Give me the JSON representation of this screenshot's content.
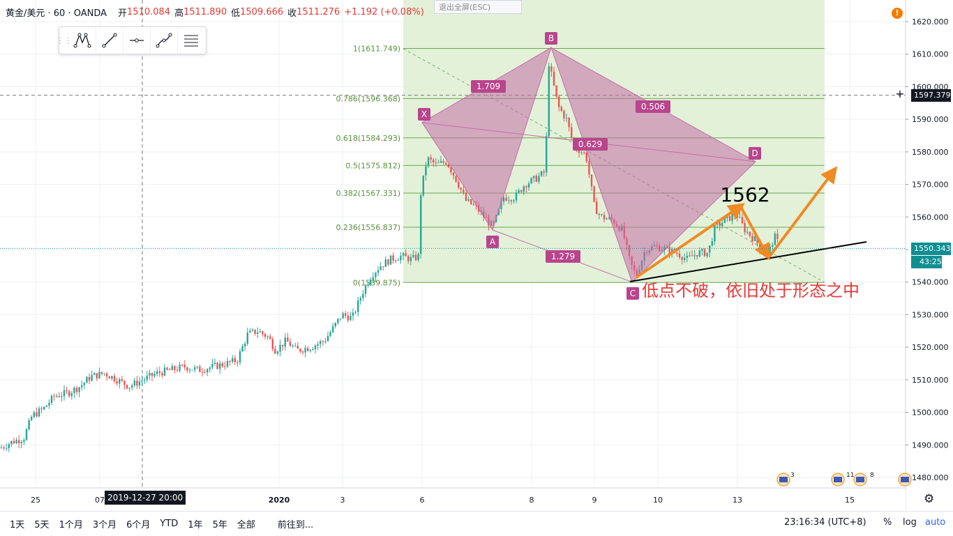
{
  "header": {
    "symbol": "黄金/美元 · 60 · OANDA",
    "open_label": "开",
    "open": "1510.084",
    "high_label": "高",
    "high": "1511.890",
    "low_label": "低",
    "low": "1509.666",
    "close_label": "收",
    "close": "1511.276",
    "change": "+1.192 (+0.08%)"
  },
  "exit_fullscreen": "退出全屏(ESC)",
  "toolbar": {
    "icons": [
      "pattern-icon",
      "trendline-icon",
      "horizontal-ray-icon",
      "curve-icon",
      "fib-icon"
    ]
  },
  "bottom": {
    "ranges": [
      "1天",
      "5天",
      "1个月",
      "3个月",
      "6个月",
      "YTD",
      "1年",
      "5年",
      "全部"
    ],
    "goto": "前往到...",
    "clock": "23:16:34 (UTC+8)",
    "percent": "%",
    "log": "log",
    "auto": "auto"
  },
  "price_axis": {
    "crosshair_price": "1597.379",
    "last_price": "1550.343",
    "countdown": "43:25"
  },
  "crosshair_time": "2019-12-27   20:00",
  "colors": {
    "up": "#26a69a",
    "down": "#ef5350",
    "fib_fill": "#e3f1d9",
    "fib_line": "#6aa84f",
    "pattern": "#c46ca6",
    "annotation": "#f08a24",
    "note_text": "#e53935",
    "last_price": "#0f8f93"
  },
  "chart_data": {
    "type": "candlestick",
    "ylim": [
      1475,
      1628
    ],
    "y_ticks": [
      1480,
      1490,
      1500,
      1510,
      1520,
      1530,
      1540,
      1550,
      1560,
      1570,
      1580,
      1590,
      1600,
      1610,
      1620
    ],
    "x_ticks": [
      "25",
      "07",
      "2020",
      "3",
      "6",
      "8",
      "9",
      "10",
      "13",
      "15"
    ],
    "close_path": [
      [
        0,
        1489
      ],
      [
        18,
        1491
      ],
      [
        34,
        1492
      ],
      [
        46,
        1499
      ],
      [
        62,
        1501
      ],
      [
        78,
        1505
      ],
      [
        98,
        1506
      ],
      [
        115,
        1508
      ],
      [
        130,
        1511
      ],
      [
        150,
        1512
      ],
      [
        168,
        1510
      ],
      [
        185,
        1508
      ],
      [
        205,
        1510
      ],
      [
        225,
        1512
      ],
      [
        245,
        1513
      ],
      [
        265,
        1514
      ],
      [
        285,
        1513
      ],
      [
        305,
        1514
      ],
      [
        325,
        1515
      ],
      [
        340,
        1516
      ],
      [
        355,
        1524
      ],
      [
        370,
        1525
      ],
      [
        385,
        1523
      ],
      [
        395,
        1519
      ],
      [
        410,
        1522
      ],
      [
        425,
        1519
      ],
      [
        445,
        1520
      ],
      [
        465,
        1522
      ],
      [
        478,
        1526
      ],
      [
        490,
        1530
      ],
      [
        505,
        1529
      ],
      [
        520,
        1537
      ],
      [
        532,
        1542
      ],
      [
        545,
        1545
      ],
      [
        560,
        1547
      ],
      [
        575,
        1548
      ],
      [
        590,
        1547
      ],
      [
        600,
        1548
      ],
      [
        603,
        1567
      ],
      [
        612,
        1578
      ],
      [
        625,
        1576
      ],
      [
        640,
        1577
      ],
      [
        655,
        1571
      ],
      [
        668,
        1565
      ],
      [
        682,
        1563
      ],
      [
        698,
        1559
      ],
      [
        706,
        1557
      ],
      [
        712,
        1560
      ],
      [
        722,
        1566
      ],
      [
        738,
        1566
      ],
      [
        752,
        1570
      ],
      [
        770,
        1572
      ],
      [
        782,
        1574
      ],
      [
        786,
        1608
      ],
      [
        790,
        1604
      ],
      [
        800,
        1594
      ],
      [
        812,
        1590
      ],
      [
        822,
        1582
      ],
      [
        840,
        1579
      ],
      [
        852,
        1563
      ],
      [
        862,
        1560
      ],
      [
        878,
        1559
      ],
      [
        892,
        1556
      ],
      [
        903,
        1546
      ],
      [
        912,
        1542
      ],
      [
        925,
        1550
      ],
      [
        940,
        1551
      ],
      [
        955,
        1550
      ],
      [
        970,
        1549
      ],
      [
        985,
        1547
      ],
      [
        1000,
        1549
      ],
      [
        1015,
        1549
      ],
      [
        1025,
        1557
      ],
      [
        1040,
        1559
      ],
      [
        1055,
        1561
      ],
      [
        1068,
        1556
      ],
      [
        1082,
        1553
      ],
      [
        1092,
        1550
      ],
      [
        1100,
        1548
      ],
      [
        1110,
        1554
      ],
      [
        1118,
        1551
      ]
    ],
    "fib_levels": [
      {
        "ratio": "1",
        "price": 1611.749,
        "label": "1(1611.749)"
      },
      {
        "ratio": "0.786",
        "price": 1596.368,
        "label": "0.786(1596.368)"
      },
      {
        "ratio": "0.618",
        "price": 1584.293,
        "label": "0.618(1584.293)"
      },
      {
        "ratio": "0.5",
        "price": 1575.812,
        "label": "0.5(1575.812)"
      },
      {
        "ratio": "0.382",
        "price": 1567.331,
        "label": "0.382(1567.331)"
      },
      {
        "ratio": "0.236",
        "price": 1556.837,
        "label": "0.236(1556.837)"
      },
      {
        "ratio": "0",
        "price": 1539.875,
        "label": "0(1539.875)"
      }
    ],
    "harmonic_points": [
      {
        "name": "X",
        "price": 1589
      },
      {
        "name": "A",
        "price": 1556
      },
      {
        "name": "B",
        "price": 1612
      },
      {
        "name": "C",
        "price": 1540
      },
      {
        "name": "D",
        "price": 1577
      }
    ],
    "ratio_labels": [
      "1.709",
      "0.506",
      "0.629",
      "1.279"
    ],
    "annotations": {
      "level_text": "1562",
      "note": "低点不破，依旧处于形态之中"
    }
  }
}
